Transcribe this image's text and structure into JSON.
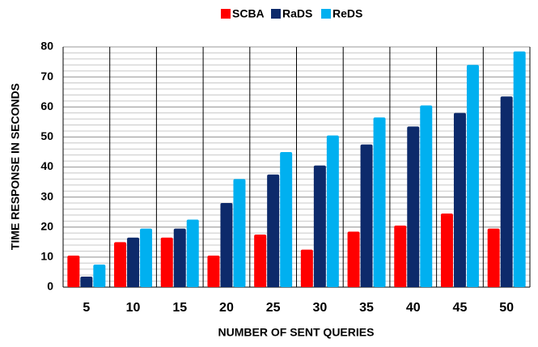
{
  "chart_data": {
    "type": "bar",
    "x_label": "NUMBER OF SENT QUERIES",
    "y_label": "TIME RESPONSE IN SECONDS",
    "categories": [
      "5",
      "10",
      "15",
      "20",
      "25",
      "30",
      "35",
      "40",
      "45",
      "50"
    ],
    "series": [
      {
        "name": "SCBA",
        "color": "#ff0000",
        "values": [
          10.5,
          15,
          16.5,
          10.5,
          17.5,
          12.5,
          18.5,
          20.5,
          24.5,
          19.5
        ]
      },
      {
        "name": "RaDS",
        "color": "#0d2a6b",
        "values": [
          3.5,
          16.5,
          19.5,
          28,
          37.5,
          40.5,
          47.5,
          53.5,
          58,
          63.5
        ]
      },
      {
        "name": "ReDS",
        "color": "#00b0f0",
        "values": [
          7.5,
          19.5,
          22.5,
          36,
          45,
          50.5,
          56.5,
          60.5,
          74,
          78.5
        ]
      }
    ],
    "ylim": [
      0,
      80
    ],
    "yticks": [
      0,
      10,
      20,
      30,
      40,
      50,
      60,
      70,
      80
    ],
    "grid": true,
    "minor_grid_step": 2,
    "legend": "top"
  }
}
